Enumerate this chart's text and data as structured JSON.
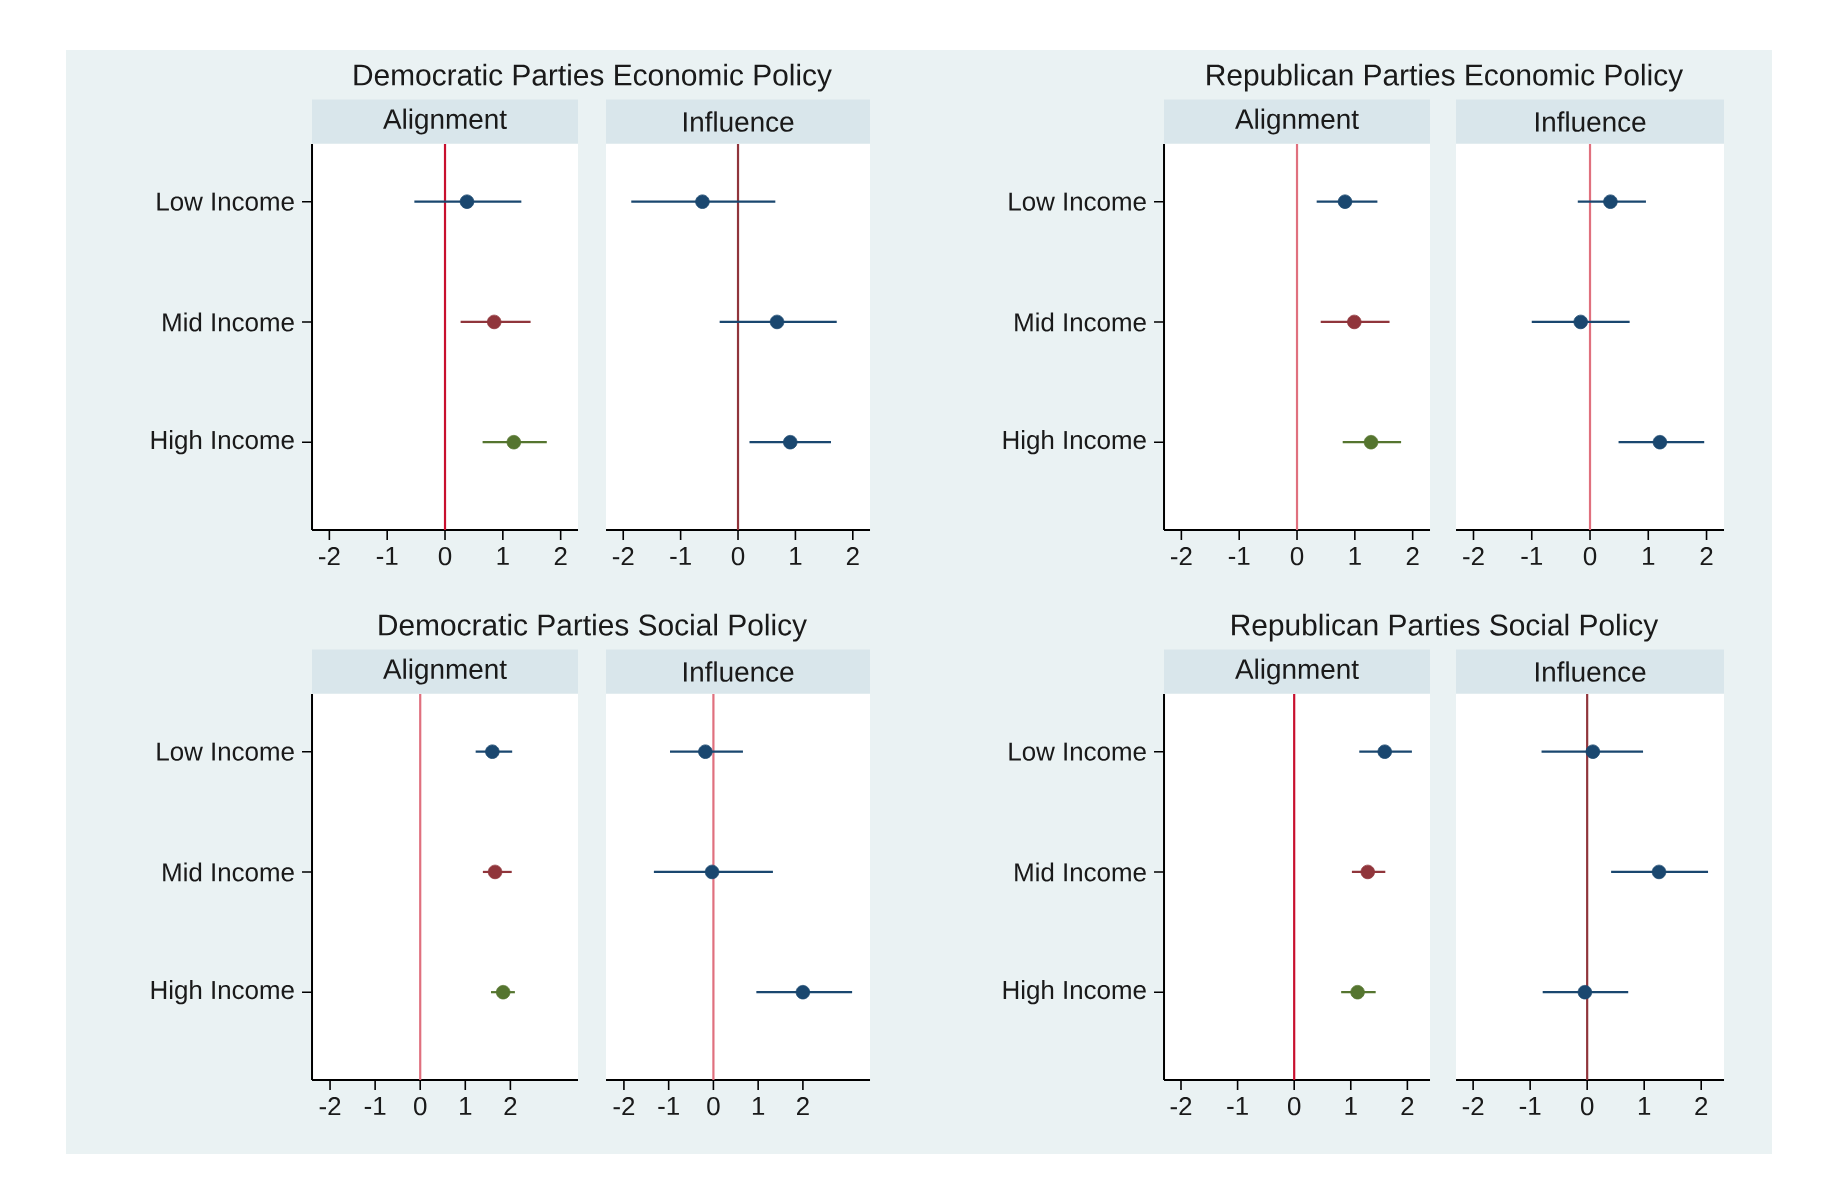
{
  "chart_data": [
    {
      "type": "scatter",
      "orientation": "horizontal",
      "title": "Democratic Parties Economic Policy",
      "subtitle": "Alignment",
      "categories": [
        "Low Income",
        "Mid Income",
        "High Income"
      ],
      "values": [
        0.38,
        0.85,
        1.19
      ],
      "errors": [
        [
          -0.53,
          1.32
        ],
        [
          0.27,
          1.48
        ],
        [
          0.65,
          1.76
        ]
      ],
      "colors": [
        "#1a476f",
        "#90353b",
        "#55752f"
      ],
      "xlim": [
        -2.3,
        2.3
      ],
      "xticks": [
        -2,
        -1,
        0,
        1,
        2
      ],
      "ref_lines": [
        {
          "axis": "x",
          "value": 0,
          "color": "#c8102e"
        }
      ],
      "marker": "circle"
    },
    {
      "type": "scatter",
      "orientation": "horizontal",
      "subtitle": "Influence",
      "values": [
        -0.62,
        0.68,
        0.91
      ],
      "errors": [
        [
          -1.86,
          0.65
        ],
        [
          -0.32,
          1.72
        ],
        [
          0.2,
          1.62
        ]
      ],
      "colors": [
        "#1a476f",
        "#1a476f",
        "#1a476f"
      ],
      "xlim": [
        -2.3,
        2.3
      ],
      "xticks": [
        -2,
        -1,
        0,
        1,
        2
      ],
      "ref_lines": [
        {
          "axis": "x",
          "value": 0,
          "color": "#90353b"
        }
      ],
      "marker": "circle",
      "tick_labels": "x"
    },
    {
      "type": "scatter",
      "orientation": "horizontal",
      "title": "Republican Parties Economic Policy",
      "subtitle": "Alignment",
      "categories": [
        "Low Income",
        "Mid Income",
        "High Income"
      ],
      "values": [
        0.83,
        0.99,
        1.28
      ],
      "errors": [
        [
          0.34,
          1.39
        ],
        [
          0.41,
          1.6
        ],
        [
          0.79,
          1.8
        ]
      ],
      "colors": [
        "#1a476f",
        "#90353b",
        "#55752f"
      ],
      "xlim": [
        -2.3,
        2.3
      ],
      "xticks": [
        -2,
        -1,
        0,
        1,
        2
      ],
      "ref_lines": [
        {
          "axis": "x",
          "value": 0,
          "color": "#e0707e"
        }
      ],
      "marker": "circle"
    },
    {
      "type": "scatter",
      "orientation": "horizontal",
      "subtitle": "Influence",
      "values": [
        0.35,
        -0.16,
        1.2
      ],
      "errors": [
        [
          -0.21,
          0.96
        ],
        [
          -1.0,
          0.68
        ],
        [
          0.49,
          1.96
        ]
      ],
      "colors": [
        "#1a476f",
        "#1a476f",
        "#1a476f"
      ],
      "xlim": [
        -2.3,
        2.3
      ],
      "xticks": [
        -2,
        -1,
        0,
        1,
        2
      ],
      "ref_lines": [
        {
          "axis": "x",
          "value": 0,
          "color": "#e0707e"
        }
      ],
      "marker": "circle",
      "tick_labels": "x"
    },
    {
      "type": "scatter",
      "orientation": "horizontal",
      "title": "Democratic Parties Social Policy",
      "subtitle": "Alignment",
      "categories": [
        "Low Income",
        "Mid Income",
        "High Income"
      ],
      "values": [
        1.6,
        1.66,
        1.84
      ],
      "errors": [
        [
          1.23,
          2.04
        ],
        [
          1.39,
          2.03
        ],
        [
          1.57,
          2.1
        ]
      ],
      "colors": [
        "#1a476f",
        "#90353b",
        "#55752f"
      ],
      "xlim": [
        -2.4,
        3.5
      ],
      "xticks": [
        -2,
        -1,
        0,
        1,
        2
      ],
      "ref_lines": [
        {
          "axis": "x",
          "value": 0,
          "color": "#e0707e"
        }
      ],
      "marker": "circle"
    },
    {
      "type": "scatter",
      "orientation": "horizontal",
      "subtitle": "Influence",
      "values": [
        -0.18,
        -0.03,
        2.0
      ],
      "errors": [
        [
          -0.97,
          0.66
        ],
        [
          -1.33,
          1.33
        ],
        [
          0.96,
          3.1
        ]
      ],
      "colors": [
        "#1a476f",
        "#1a476f",
        "#1a476f"
      ],
      "xlim": [
        -2.4,
        3.5
      ],
      "xticks": [
        -2,
        -1,
        0,
        1,
        2
      ],
      "ref_lines": [
        {
          "axis": "x",
          "value": 0,
          "color": "#e0707e"
        }
      ],
      "marker": "circle",
      "tick_labels": "x"
    },
    {
      "type": "scatter",
      "orientation": "horizontal",
      "title": "Republican Parties Social Policy",
      "subtitle": "Alignment",
      "categories": [
        "Low Income",
        "Mid Income",
        "High Income"
      ],
      "values": [
        1.6,
        1.3,
        1.12
      ],
      "errors": [
        [
          1.15,
          2.08
        ],
        [
          1.02,
          1.61
        ],
        [
          0.83,
          1.44
        ]
      ],
      "colors": [
        "#1a476f",
        "#90353b",
        "#55752f"
      ],
      "xlim": [
        -2.3,
        2.4
      ],
      "xticks": [
        -2,
        -1,
        0,
        1,
        2
      ],
      "ref_lines": [
        {
          "axis": "x",
          "value": 0,
          "color": "#c8102e"
        }
      ],
      "marker": "circle"
    },
    {
      "type": "scatter",
      "orientation": "horizontal",
      "subtitle": "Influence",
      "values": [
        0.1,
        1.26,
        -0.04
      ],
      "errors": [
        [
          -0.8,
          0.98
        ],
        [
          0.42,
          2.12
        ],
        [
          -0.78,
          0.72
        ]
      ],
      "colors": [
        "#1a476f",
        "#1a476f",
        "#1a476f"
      ],
      "xlim": [
        -2.3,
        2.4
      ],
      "xticks": [
        -2,
        -1,
        0,
        1,
        2
      ],
      "ref_lines": [
        {
          "axis": "x",
          "value": 0,
          "color": "#90353b"
        }
      ],
      "marker": "circle",
      "tick_labels": "x"
    }
  ]
}
